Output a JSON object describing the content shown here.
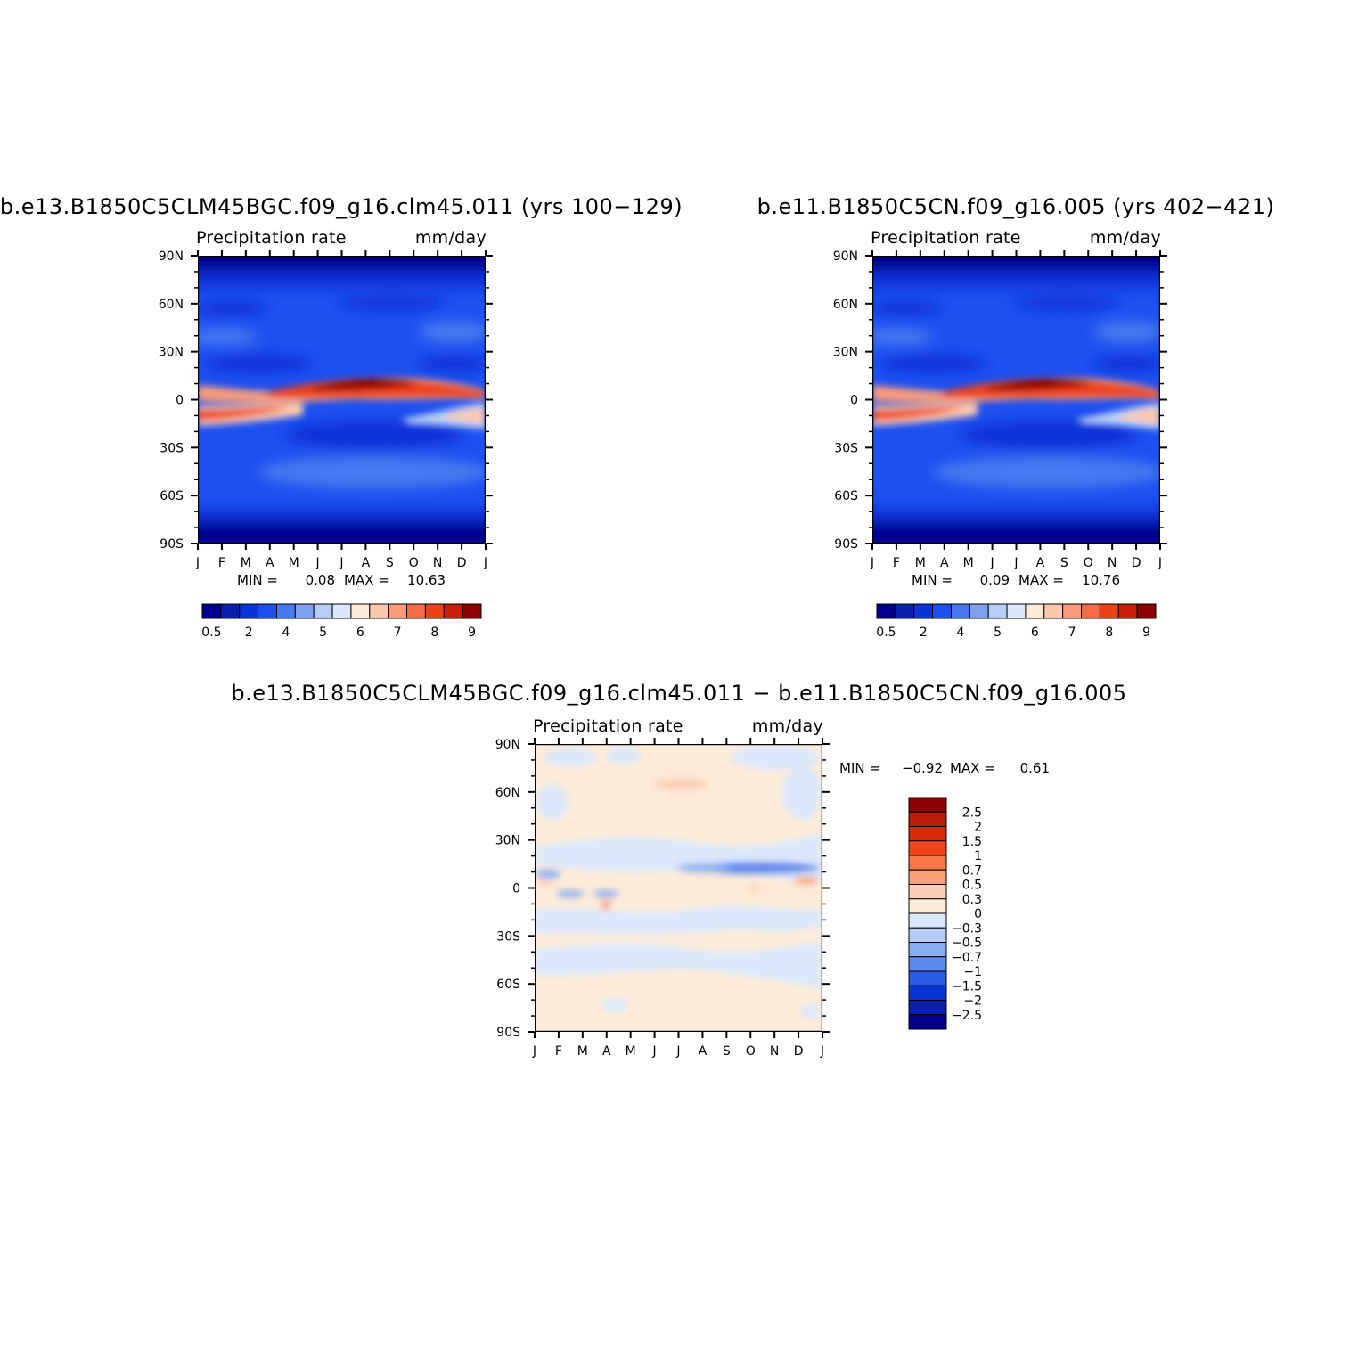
{
  "chart_data": [
    {
      "type": "heatmap",
      "title": "b.e13.B1850C5CLM45BGC.f09_g16.clm45.011 (yrs 100−129)",
      "left_string": "Precipitation rate",
      "right_string": "mm/day",
      "x_ticklabels": [
        "J",
        "F",
        "M",
        "A",
        "M",
        "J",
        "J",
        "A",
        "S",
        "O",
        "N",
        "D",
        "J"
      ],
      "y_ticklabels": [
        "90N",
        "60N",
        "30N",
        "0",
        "30S",
        "60S",
        "90S"
      ],
      "ylim": [
        -90,
        90
      ],
      "stats": {
        "min_label": "MIN =",
        "min": "0.08",
        "max_label": "MAX =",
        "max": "10.63"
      },
      "colorbar": {
        "orientation": "horizontal",
        "labels": [
          "0.5",
          "2",
          "4",
          "5",
          "6",
          "7",
          "8",
          "9"
        ],
        "colors": [
          "#00008b",
          "#0a1fae",
          "#0a33d8",
          "#1e50f0",
          "#4678f0",
          "#7ea0f0",
          "#b7cdf7",
          "#dbe8fb",
          "#fdebd8",
          "#fbc8ad",
          "#f79b7b",
          "#f56b45",
          "#ee4018",
          "#c81e0a",
          "#8b0000"
        ]
      },
      "bands": [
        {
          "lat": 90,
          "value": 0.3
        },
        {
          "lat": 75,
          "value": 1.0
        },
        {
          "lat": 60,
          "value": 2.0
        },
        {
          "lat": 45,
          "value": 2.5
        },
        {
          "lat": 30,
          "value": 1.5
        },
        {
          "lat": 15,
          "value": 1.0
        },
        {
          "lat": 5,
          "value": 6.0,
          "season_peak": "J-S",
          "peak_value": 10.5
        },
        {
          "lat": -5,
          "value": 6.0,
          "season_peak": "F-A",
          "peak_value": 8.0
        },
        {
          "lat": -20,
          "value": 1.5
        },
        {
          "lat": -40,
          "value": 3.0
        },
        {
          "lat": -60,
          "value": 2.5
        },
        {
          "lat": -75,
          "value": 1.0
        },
        {
          "lat": -90,
          "value": 0.3
        }
      ]
    },
    {
      "type": "heatmap",
      "title": "b.e11.B1850C5CN.f09_g16.005 (yrs 402−421)",
      "left_string": "Precipitation rate",
      "right_string": "mm/day",
      "x_ticklabels": [
        "J",
        "F",
        "M",
        "A",
        "M",
        "J",
        "J",
        "A",
        "S",
        "O",
        "N",
        "D",
        "J"
      ],
      "y_ticklabels": [
        "90N",
        "60N",
        "30N",
        "0",
        "30S",
        "60S",
        "90S"
      ],
      "ylim": [
        -90,
        90
      ],
      "stats": {
        "min_label": "MIN =",
        "min": "0.09",
        "max_label": "MAX =",
        "max": "10.76"
      },
      "colorbar": {
        "orientation": "horizontal",
        "labels": [
          "0.5",
          "2",
          "4",
          "5",
          "6",
          "7",
          "8",
          "9"
        ],
        "colors": [
          "#00008b",
          "#0a1fae",
          "#0a33d8",
          "#1e50f0",
          "#4678f0",
          "#7ea0f0",
          "#b7cdf7",
          "#dbe8fb",
          "#fdebd8",
          "#fbc8ad",
          "#f79b7b",
          "#f56b45",
          "#ee4018",
          "#c81e0a",
          "#8b0000"
        ]
      },
      "bands": [
        {
          "lat": 90,
          "value": 0.3
        },
        {
          "lat": 75,
          "value": 1.0
        },
        {
          "lat": 60,
          "value": 2.0
        },
        {
          "lat": 45,
          "value": 2.5
        },
        {
          "lat": 30,
          "value": 1.5
        },
        {
          "lat": 15,
          "value": 1.0
        },
        {
          "lat": 5,
          "value": 6.0,
          "season_peak": "J-S",
          "peak_value": 10.7
        },
        {
          "lat": -5,
          "value": 6.0,
          "season_peak": "F-A",
          "peak_value": 8.0
        },
        {
          "lat": -20,
          "value": 1.5
        },
        {
          "lat": -40,
          "value": 3.0
        },
        {
          "lat": -60,
          "value": 2.5
        },
        {
          "lat": -75,
          "value": 1.0
        },
        {
          "lat": -90,
          "value": 0.3
        }
      ]
    },
    {
      "type": "heatmap",
      "title": "b.e13.B1850C5CLM45BGC.f09_g16.clm45.011 − b.e11.B1850C5CN.f09_g16.005",
      "left_string": "Precipitation rate",
      "right_string": "mm/day",
      "x_ticklabels": [
        "J",
        "F",
        "M",
        "A",
        "M",
        "J",
        "J",
        "A",
        "S",
        "O",
        "N",
        "D",
        "J"
      ],
      "y_ticklabels": [
        "90N",
        "60N",
        "30N",
        "0",
        "30S",
        "60S",
        "90S"
      ],
      "ylim": [
        -90,
        90
      ],
      "stats": {
        "min_label": "MIN =",
        "min": "−0.92",
        "max_label": "MAX =",
        "max": "0.61"
      },
      "colorbar": {
        "orientation": "vertical",
        "labels": [
          "2.5",
          "2",
          "1.5",
          "1",
          "0.7",
          "0.5",
          "0.3",
          "0",
          "−0.3",
          "−0.5",
          "−0.7",
          "−1",
          "−1.5",
          "−2",
          "−2.5"
        ],
        "colors": [
          "#8b0000",
          "#b81d0a",
          "#d92a0e",
          "#f2441b",
          "#f77745",
          "#f7a07a",
          "#fbcdb2",
          "#fdebd8",
          "#dbe8fb",
          "#b7cdf7",
          "#8aaef2",
          "#5f88ec",
          "#2c5ae6",
          "#0a33d8",
          "#0a1fae",
          "#00008b"
        ]
      },
      "bands": [
        {
          "lat": 90,
          "value": 0.15
        },
        {
          "lat": 60,
          "value": 0.2
        },
        {
          "lat": 30,
          "value": -0.15
        },
        {
          "lat": 10,
          "value": -0.5
        },
        {
          "lat": 0,
          "value": 0.15
        },
        {
          "lat": -20,
          "value": -0.1
        },
        {
          "lat": -45,
          "value": -0.15
        },
        {
          "lat": -70,
          "value": 0.15
        },
        {
          "lat": -90,
          "value": 0.15
        }
      ]
    }
  ]
}
